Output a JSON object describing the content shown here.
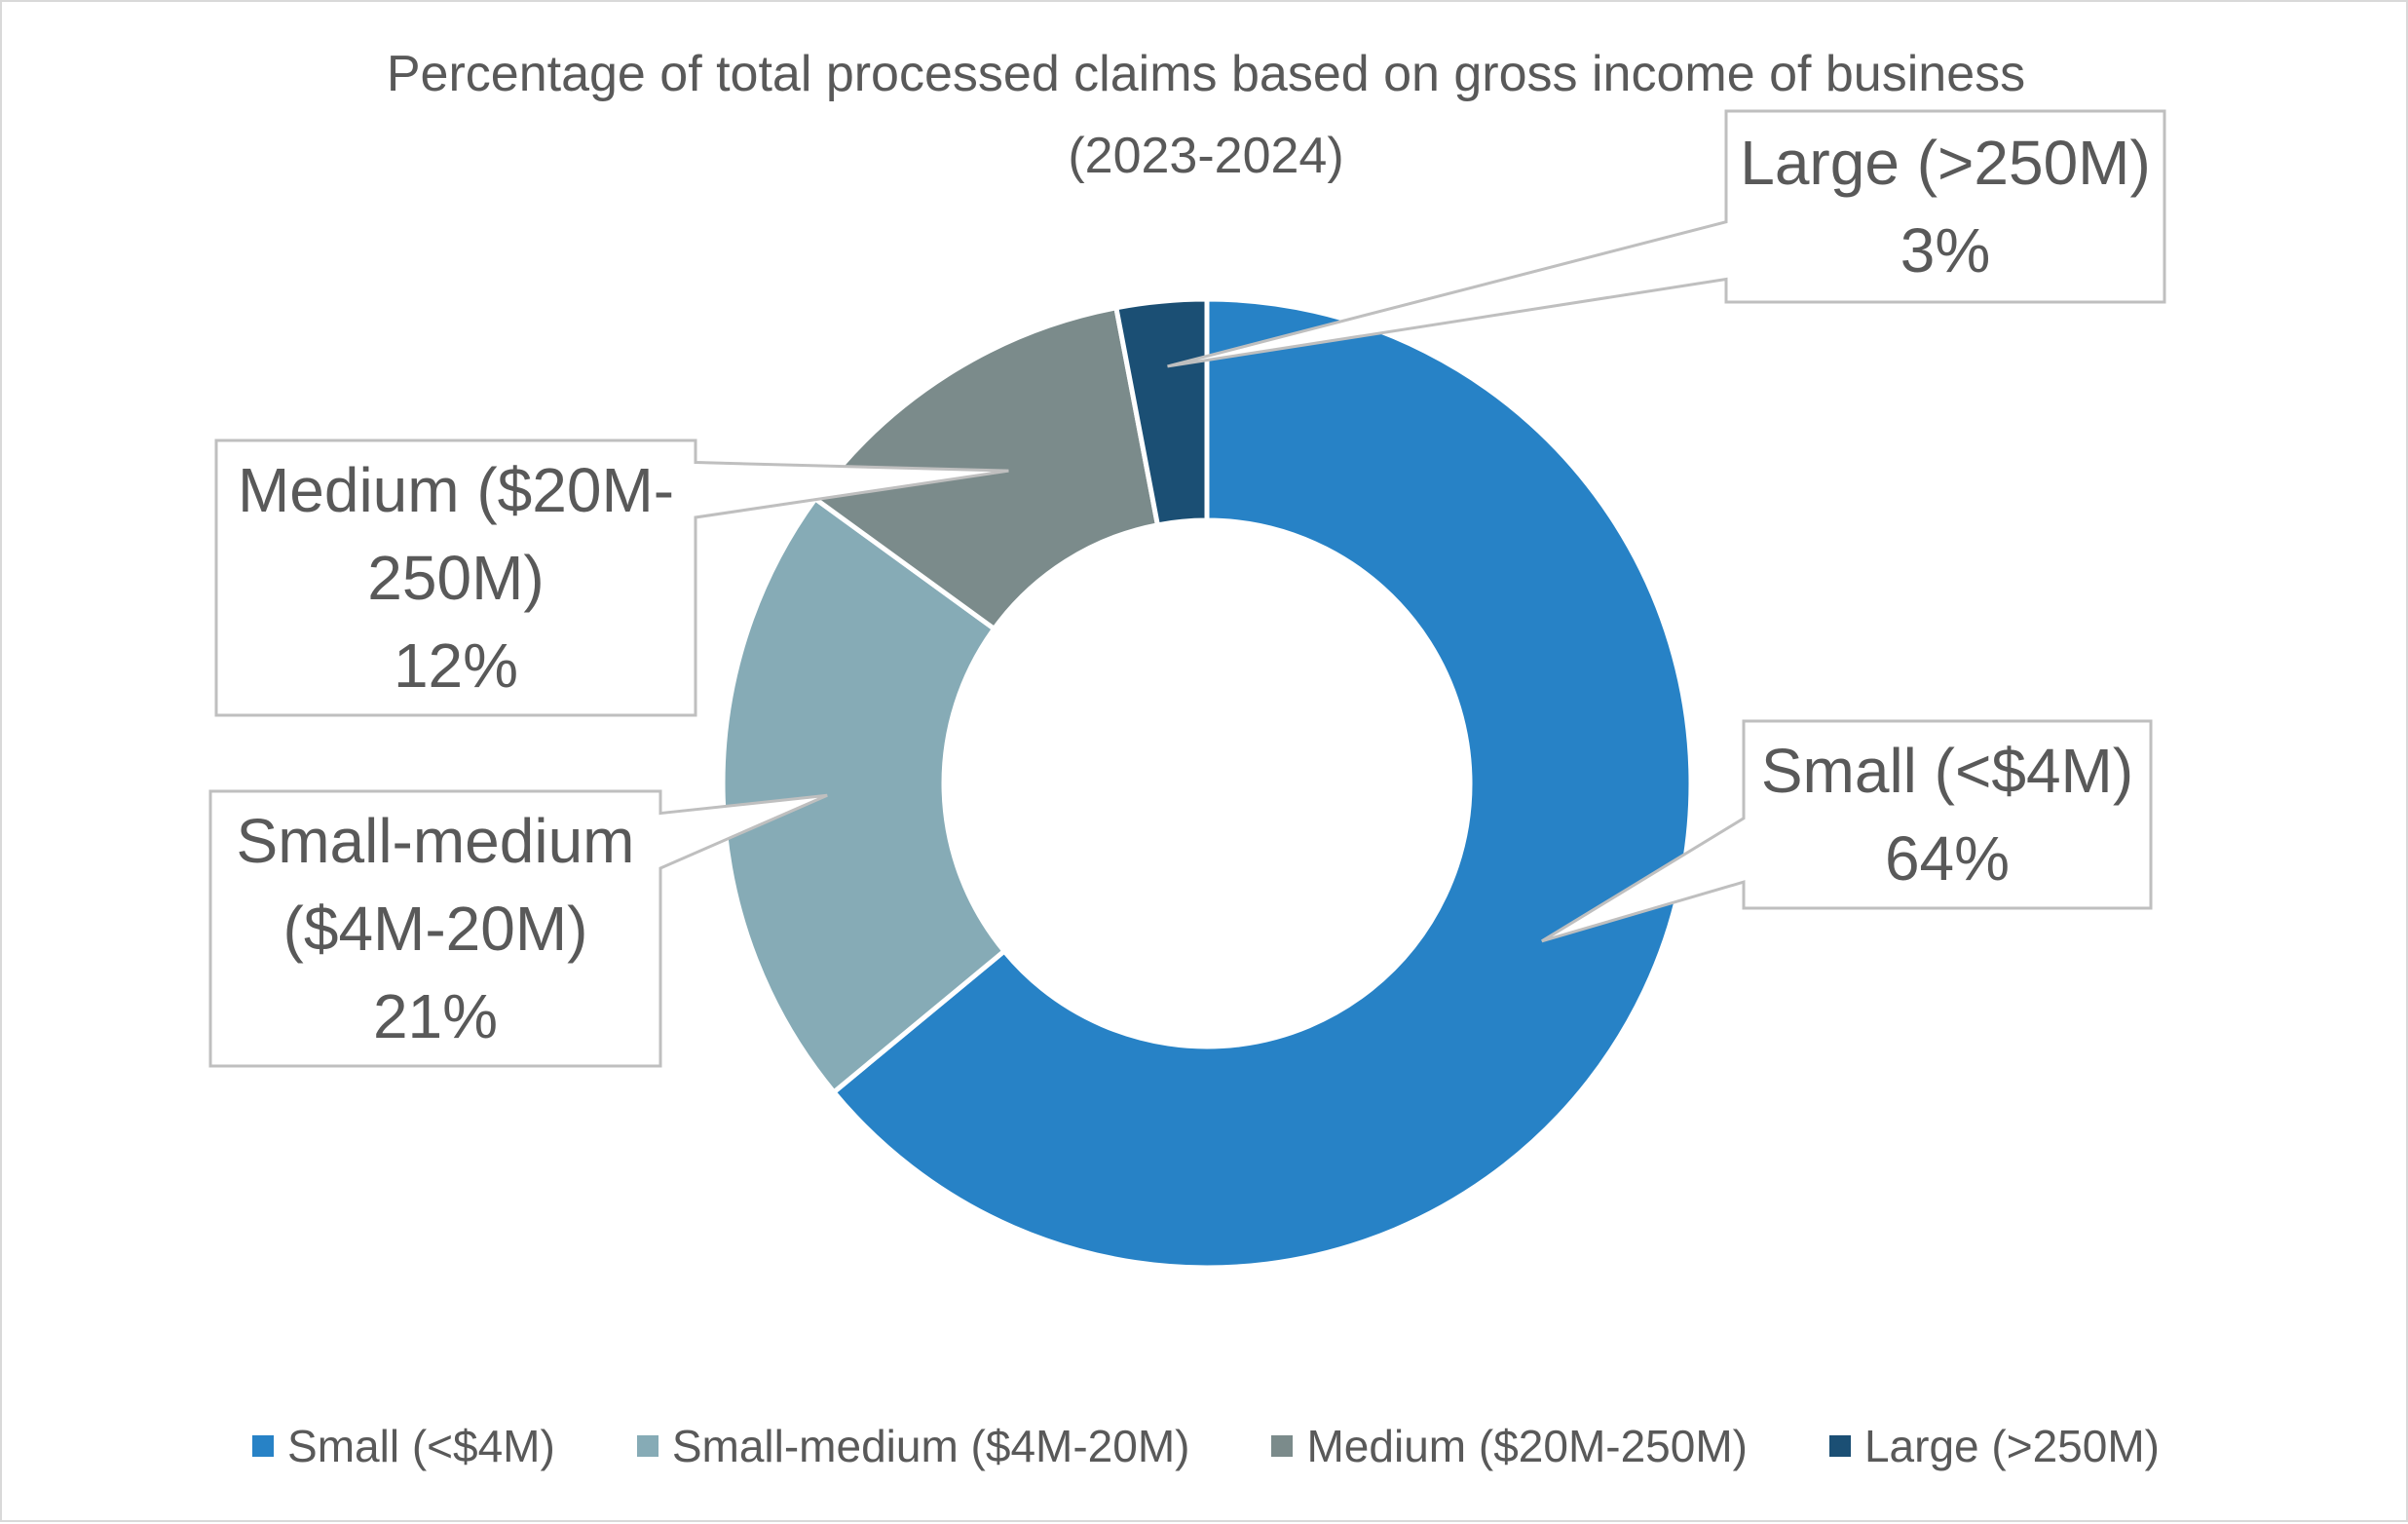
{
  "chart_data": {
    "type": "pie",
    "variant": "doughnut",
    "title": "Percentage of total processed claims based on gross income of business (2023-2024)",
    "title_lines": [
      "Percentage of total processed claims based on gross income of business",
      "(2023-2024)"
    ],
    "series": [
      {
        "name": "Percentage of total processed claims",
        "slices": [
          {
            "label": "Small (<$4M)",
            "value": 64,
            "display": "64%",
            "label_lines": [
              "Small (<$4M)"
            ],
            "color": "#2782c6"
          },
          {
            "label": "Small-medium ($4M-20M)",
            "value": 21,
            "display": "21%",
            "label_lines": [
              "Small-medium",
              "($4M-20M)"
            ],
            "color": "#86abb6"
          },
          {
            "label": "Medium ($20M-250M)",
            "value": 12,
            "display": "12%",
            "label_lines": [
              "Medium ($20M-",
              "250M)"
            ],
            "color": "#7b8b8b"
          },
          {
            "label": "Large (>250M)",
            "value": 3,
            "display": "3%",
            "label_lines": [
              "Large (>250M)"
            ],
            "color": "#1b4f74"
          }
        ]
      }
    ],
    "legend": {
      "position": "bottom",
      "entries": [
        "Small (<$4M)",
        "Small-medium ($4M-20M)",
        "Medium ($20M-250M)",
        "Large (>250M)"
      ]
    },
    "colors": {
      "text": "#595959",
      "border": "#d9d9d9",
      "callout_border": "#bfbfbf",
      "background": "#ffffff"
    }
  }
}
